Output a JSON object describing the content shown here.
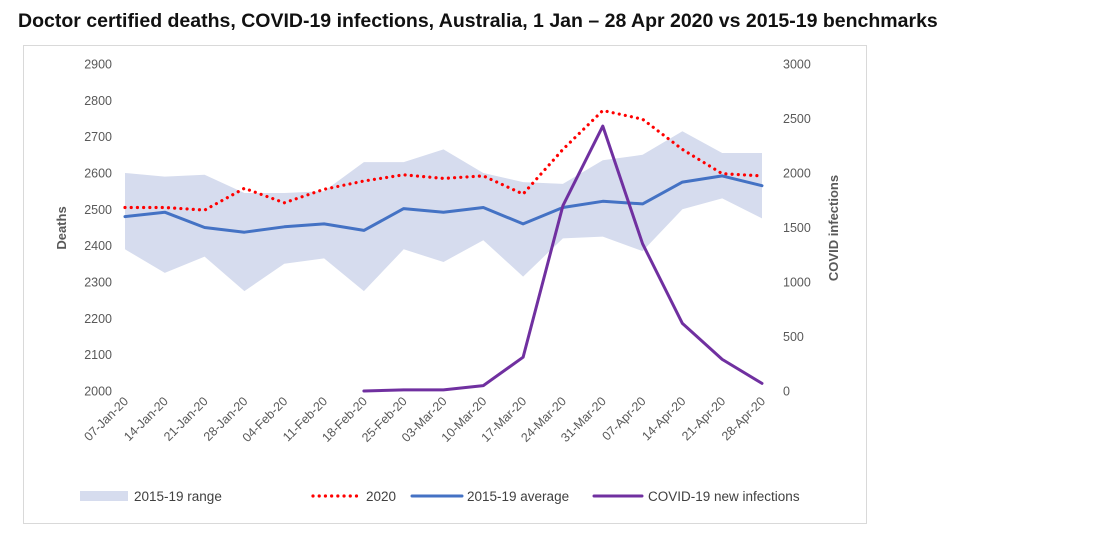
{
  "chart_data": {
    "type": "line",
    "title": "Doctor certified deaths, COVID-19 infections, Australia, 1 Jan – 28 Apr 2020 vs 2015-19 benchmarks",
    "categories": [
      "07-Jan-20",
      "14-Jan-20",
      "21-Jan-20",
      "28-Jan-20",
      "04-Feb-20",
      "11-Feb-20",
      "18-Feb-20",
      "25-Feb-20",
      "03-Mar-20",
      "10-Mar-20",
      "17-Mar-20",
      "24-Mar-20",
      "31-Mar-20",
      "07-Apr-20",
      "14-Apr-20",
      "21-Apr-20",
      "28-Apr-20"
    ],
    "y_left": {
      "label": "Deaths",
      "ylim": [
        2000,
        2900
      ],
      "ticks": [
        2000,
        2100,
        2200,
        2300,
        2400,
        2500,
        2600,
        2700,
        2800,
        2900
      ]
    },
    "y_right": {
      "label": "COVID infections",
      "ylim": [
        0,
        3000
      ],
      "ticks": [
        0,
        500,
        1000,
        1500,
        2000,
        2500,
        3000
      ]
    },
    "range": {
      "name": "2015-19 range",
      "color": "#d6dcee",
      "low": [
        2390,
        2325,
        2370,
        2275,
        2350,
        2365,
        2275,
        2390,
        2355,
        2415,
        2315,
        2420,
        2425,
        2385,
        2500,
        2530,
        2475
      ],
      "high": [
        2600,
        2590,
        2595,
        2545,
        2545,
        2550,
        2630,
        2630,
        2665,
        2600,
        2575,
        2570,
        2635,
        2650,
        2715,
        2655,
        2655
      ]
    },
    "series": [
      {
        "name": "2020",
        "axis": "left",
        "color": "#ff0000",
        "style": "dotted",
        "values": [
          2505,
          2505,
          2498,
          2558,
          2518,
          2555,
          2578,
          2595,
          2585,
          2592,
          2542,
          2665,
          2772,
          2748,
          2665,
          2598,
          2592
        ]
      },
      {
        "name": "2015-19 average",
        "axis": "left",
        "color": "#4472c4",
        "style": "solid",
        "values": [
          2480,
          2492,
          2450,
          2437,
          2452,
          2460,
          2442,
          2502,
          2492,
          2505,
          2460,
          2505,
          2522,
          2515,
          2575,
          2592,
          2565
        ]
      },
      {
        "name": "COVID-19 new infections",
        "axis": "right",
        "color": "#7030a0",
        "style": "solid",
        "values": [
          null,
          null,
          null,
          null,
          null,
          null,
          0,
          10,
          10,
          50,
          310,
          1700,
          2430,
          1350,
          620,
          290,
          70
        ]
      }
    ],
    "legend": [
      "2015-19 range",
      "2020",
      "2015-19 average",
      "COVID-19 new infections"
    ],
    "legend_position": "bottom"
  }
}
